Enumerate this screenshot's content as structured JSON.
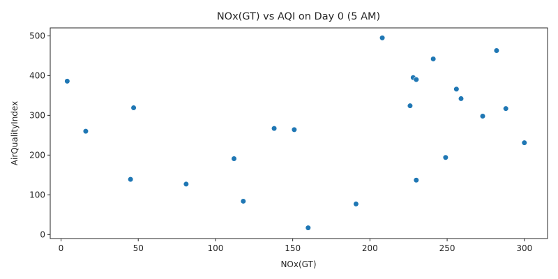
{
  "chart_data": {
    "type": "scatter",
    "title": "NOx(GT) vs AQI on Day 0 (5 AM)",
    "xlabel": "NOx(GT)",
    "ylabel": "AirQualityIndex",
    "xlim": [
      -7,
      315
    ],
    "ylim": [
      -10,
      520
    ],
    "xticks": [
      0,
      50,
      100,
      150,
      200,
      250,
      300
    ],
    "yticks": [
      0,
      100,
      200,
      300,
      400,
      500
    ],
    "grid": false,
    "marker_color": "#1f77b4",
    "points": [
      {
        "x": 4,
        "y": 386
      },
      {
        "x": 16,
        "y": 260
      },
      {
        "x": 45,
        "y": 139
      },
      {
        "x": 47,
        "y": 319
      },
      {
        "x": 81,
        "y": 127
      },
      {
        "x": 112,
        "y": 191
      },
      {
        "x": 118,
        "y": 84
      },
      {
        "x": 138,
        "y": 267
      },
      {
        "x": 151,
        "y": 264
      },
      {
        "x": 160,
        "y": 17
      },
      {
        "x": 191,
        "y": 77
      },
      {
        "x": 208,
        "y": 495
      },
      {
        "x": 226,
        "y": 324
      },
      {
        "x": 228,
        "y": 395
      },
      {
        "x": 230,
        "y": 390
      },
      {
        "x": 230,
        "y": 137
      },
      {
        "x": 241,
        "y": 442
      },
      {
        "x": 249,
        "y": 194
      },
      {
        "x": 256,
        "y": 366
      },
      {
        "x": 259,
        "y": 342
      },
      {
        "x": 273,
        "y": 298
      },
      {
        "x": 282,
        "y": 463
      },
      {
        "x": 288,
        "y": 317
      },
      {
        "x": 300,
        "y": 231
      }
    ]
  }
}
